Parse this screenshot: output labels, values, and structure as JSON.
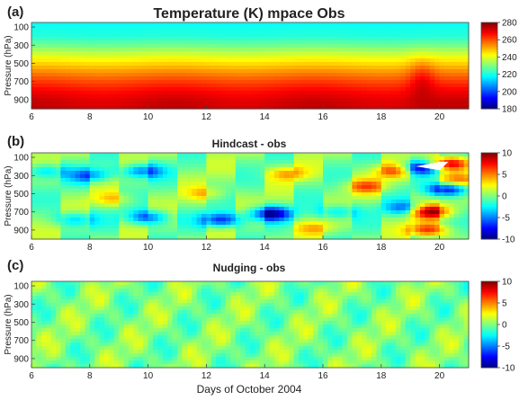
{
  "chart_data": [
    {
      "type": "heatmap",
      "panel_label": "(a)",
      "title": "Temperature (K) mpace Obs",
      "ylabel": "Pressure (hPa)",
      "xlabel": "",
      "x_range": [
        6,
        21
      ],
      "x_ticks": [
        "6",
        "8",
        "10",
        "12",
        "14",
        "16",
        "18",
        "20"
      ],
      "y_range": [
        50,
        1000
      ],
      "y_ticks": [
        "100",
        "300",
        "500",
        "700",
        "900"
      ],
      "colorbar": {
        "min": 180,
        "max": 280,
        "ticks": [
          "280",
          "260",
          "240",
          "220",
          "200",
          "180"
        ]
      },
      "profile_note": "temperature increases with pressure, warm ~275 K near surface; bump around day 19.5",
      "field": {
        "pressure_levels": [
          50,
          100,
          200,
          300,
          400,
          500,
          600,
          700,
          800,
          900,
          1000
        ],
        "mean_profile": [
          218,
          219,
          221,
          228,
          238,
          246,
          254,
          261,
          267,
          271,
          273
        ]
      }
    },
    {
      "type": "heatmap",
      "panel_label": "(b)",
      "title": "Hindcast - obs",
      "ylabel": "Pressure (hPa)",
      "xlabel": "",
      "x_range": [
        6,
        21
      ],
      "x_ticks": [
        "6",
        "8",
        "10",
        "12",
        "14",
        "16",
        "18",
        "20"
      ],
      "y_range": [
        50,
        1000
      ],
      "y_ticks": [
        "100",
        "300",
        "500",
        "700",
        "900"
      ],
      "colorbar": {
        "min": -10,
        "max": 10,
        "ticks": [
          "10",
          "5",
          "0",
          "-5",
          "-10"
        ]
      },
      "field": {
        "anomalies": [
          {
            "day": 7.5,
            "p": 780,
            "amp": -4
          },
          {
            "day": 10.0,
            "p": 760,
            "amp": -6
          },
          {
            "day": 12.5,
            "p": 790,
            "amp": -7
          },
          {
            "day": 14.2,
            "p": 720,
            "amp": -9
          },
          {
            "day": 16.5,
            "p": 700,
            "amp": -4
          },
          {
            "day": 18.8,
            "p": 660,
            "amp": -5
          },
          {
            "day": 9.8,
            "p": 250,
            "amp": -6
          },
          {
            "day": 8.0,
            "p": 300,
            "amp": -5
          },
          {
            "day": 20.3,
            "p": 450,
            "amp": -9
          },
          {
            "day": 19.3,
            "p": 220,
            "amp": -8
          },
          {
            "day": 6.5,
            "p": 250,
            "amp": -4
          },
          {
            "day": 19.7,
            "p": 700,
            "amp": 9
          },
          {
            "day": 19.6,
            "p": 900,
            "amp": 7
          },
          {
            "day": 17.5,
            "p": 420,
            "amp": 5
          },
          {
            "day": 14.8,
            "p": 280,
            "amp": 4
          },
          {
            "day": 20.6,
            "p": 350,
            "amp": 5
          },
          {
            "day": 18.5,
            "p": 250,
            "amp": 6
          },
          {
            "day": 12.0,
            "p": 500,
            "amp": 3
          },
          {
            "day": 8.8,
            "p": 560,
            "amp": 3
          },
          {
            "day": 15.7,
            "p": 880,
            "amp": 3
          },
          {
            "day": 20.4,
            "p": 170,
            "amp": 9
          }
        ]
      }
    },
    {
      "type": "heatmap",
      "panel_label": "(c)",
      "title": "Nudging - obs",
      "ylabel": "Pressure (hPa)",
      "xlabel": "Days of October 2004",
      "x_range": [
        6,
        21
      ],
      "x_ticks": [
        "6",
        "8",
        "10",
        "12",
        "14",
        "16",
        "18",
        "20"
      ],
      "y_range": [
        50,
        1000
      ],
      "y_ticks": [
        "100",
        "300",
        "500",
        "700",
        "900"
      ],
      "colorbar": {
        "min": -10,
        "max": 10,
        "ticks": [
          "10",
          "5",
          "0",
          "-5",
          "-10"
        ]
      },
      "field": {
        "description": "small differences, mostly within ±2 K"
      }
    }
  ]
}
